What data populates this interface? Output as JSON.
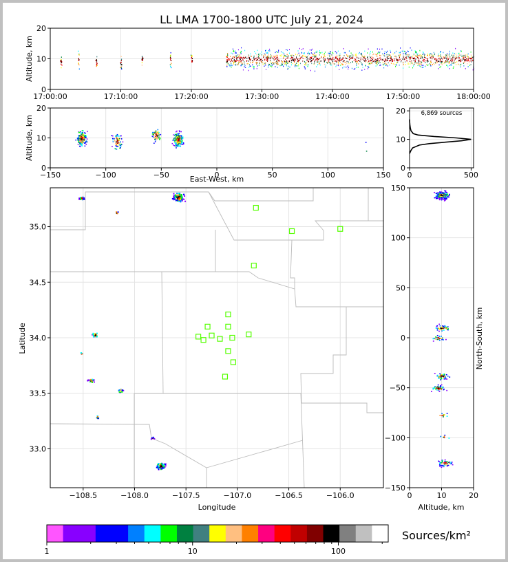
{
  "title": "LL LMA 1700-1800 UTC July 21, 2024",
  "chart_data": [
    {
      "id": "time-height",
      "type": "scatter",
      "ylabel": "Altitude, km",
      "ylim": [
        0,
        20
      ],
      "yticks": [
        "0",
        "10",
        "20"
      ],
      "xticks": [
        "17:00:00",
        "17:10:00",
        "17:20:00",
        "17:30:00",
        "17:40:00",
        "17:50:00",
        "18:00:00"
      ],
      "xlim_minutes": [
        0,
        60
      ],
      "clusters": [
        {
          "t": 1.5,
          "alt": 9,
          "spread": 2
        },
        {
          "t": 4,
          "alt": 10,
          "spread": 3
        },
        {
          "t": 6.5,
          "alt": 9,
          "spread": 2
        },
        {
          "t": 10,
          "alt": 9,
          "spread": 2
        },
        {
          "t": 13,
          "alt": 10,
          "spread": 2
        },
        {
          "t": 17,
          "alt": 10,
          "spread": 3
        },
        {
          "t": 20,
          "alt": 10,
          "spread": 2
        },
        {
          "t": 25,
          "alt": 10,
          "spread": 2
        }
      ],
      "dense_range_minutes": [
        25,
        60
      ]
    },
    {
      "id": "ew-height",
      "type": "scatter",
      "xlabel": "East-West, km",
      "ylabel": "Altitude, km",
      "xlim": [
        -150,
        150
      ],
      "ylim": [
        0,
        20
      ],
      "xticks": [
        "−150",
        "−100",
        "−50",
        "0",
        "50",
        "100",
        "150"
      ],
      "yticks": [
        "0",
        "10",
        "20"
      ],
      "clusters": [
        {
          "x": -122,
          "alt": 10,
          "n": 180
        },
        {
          "x": -90,
          "alt": 9,
          "n": 70
        },
        {
          "x": -55,
          "alt": 11,
          "n": 60
        },
        {
          "x": -35,
          "alt": 9.5,
          "n": 200
        },
        {
          "x": 136,
          "alt": 7,
          "n": 2
        }
      ]
    },
    {
      "id": "altitude-histogram",
      "type": "line",
      "annotation": "6,869 sources",
      "xticks": [
        "0",
        "500"
      ],
      "yticks": [
        "0",
        "10",
        "20"
      ],
      "xlim": [
        0,
        520
      ],
      "ylim": [
        0,
        21
      ],
      "profile": [
        {
          "alt": 5,
          "count": 0
        },
        {
          "alt": 6,
          "count": 10
        },
        {
          "alt": 7,
          "count": 25
        },
        {
          "alt": 8,
          "count": 80
        },
        {
          "alt": 8.5,
          "count": 160
        },
        {
          "alt": 9,
          "count": 290
        },
        {
          "alt": 9.5,
          "count": 420
        },
        {
          "alt": 10,
          "count": 500
        },
        {
          "alt": 10.5,
          "count": 380
        },
        {
          "alt": 11,
          "count": 200
        },
        {
          "alt": 11.5,
          "count": 70
        },
        {
          "alt": 12,
          "count": 30
        },
        {
          "alt": 13,
          "count": 12
        },
        {
          "alt": 14,
          "count": 6
        },
        {
          "alt": 15,
          "count": 3
        },
        {
          "alt": 16,
          "count": 1
        },
        {
          "alt": 17,
          "count": 0
        }
      ]
    },
    {
      "id": "plan-view",
      "type": "scatter",
      "xlabel": "Longitude",
      "ylabel": "Latitude",
      "xlim": [
        -108.82,
        -105.58
      ],
      "ylim": [
        32.65,
        35.35
      ],
      "xticks": [
        "−108.5",
        "−108.0",
        "−107.5",
        "−107.0",
        "−106.5",
        "−106.0"
      ],
      "yticks": [
        "33.0",
        "33.5",
        "34.0",
        "34.5",
        "35.0"
      ],
      "clusters": [
        {
          "lon": -108.52,
          "lat": 35.26,
          "n": 30
        },
        {
          "lon": -108.18,
          "lat": 35.13,
          "n": 4
        },
        {
          "lon": -107.58,
          "lat": 35.27,
          "n": 140
        },
        {
          "lon": -108.39,
          "lat": 34.03,
          "n": 40
        },
        {
          "lon": -108.52,
          "lat": 33.86,
          "n": 6
        },
        {
          "lon": -108.43,
          "lat": 33.62,
          "n": 30
        },
        {
          "lon": -108.14,
          "lat": 33.53,
          "n": 25
        },
        {
          "lon": -108.37,
          "lat": 33.29,
          "n": 10
        },
        {
          "lon": -107.83,
          "lat": 33.1,
          "n": 6
        },
        {
          "lon": -107.75,
          "lat": 32.85,
          "n": 80
        }
      ],
      "stations": [
        {
          "lon": -106.82,
          "lat": 35.17
        },
        {
          "lon": -106.47,
          "lat": 34.96
        },
        {
          "lon": -106.0,
          "lat": 34.98
        },
        {
          "lon": -106.84,
          "lat": 34.65
        },
        {
          "lon": -107.09,
          "lat": 34.21
        },
        {
          "lon": -107.29,
          "lat": 34.1
        },
        {
          "lon": -107.09,
          "lat": 34.1
        },
        {
          "lon": -107.38,
          "lat": 34.01
        },
        {
          "lon": -107.25,
          "lat": 34.02
        },
        {
          "lon": -107.33,
          "lat": 33.98
        },
        {
          "lon": -107.17,
          "lat": 33.99
        },
        {
          "lon": -107.05,
          "lat": 34.0
        },
        {
          "lon": -106.89,
          "lat": 34.03
        },
        {
          "lon": -107.09,
          "lat": 33.88
        },
        {
          "lon": -107.04,
          "lat": 33.78
        },
        {
          "lon": -107.12,
          "lat": 33.65
        }
      ]
    },
    {
      "id": "ns-height",
      "type": "scatter",
      "xlabel": "Altitude, km",
      "ylabel": "North-South, km",
      "xlim": [
        0,
        20
      ],
      "ylim": [
        -150,
        150
      ],
      "xticks": [
        "0",
        "10",
        "20"
      ],
      "yticks": [
        "−150",
        "−100",
        "−50",
        "0",
        "50",
        "100",
        "150"
      ],
      "clusters": [
        {
          "alt": 10,
          "y": 143,
          "n": 200
        },
        {
          "alt": 10,
          "y": 10,
          "n": 40
        },
        {
          "alt": 9,
          "y": 0,
          "n": 30
        },
        {
          "alt": 10,
          "y": -38,
          "n": 60
        },
        {
          "alt": 9,
          "y": -50,
          "n": 50
        },
        {
          "alt": 10,
          "y": -77,
          "n": 10
        },
        {
          "alt": 11,
          "y": -99,
          "n": 6
        },
        {
          "alt": 11,
          "y": -125,
          "n": 60
        }
      ]
    }
  ],
  "colorbar": {
    "label": "Sources/km²",
    "tick_labels": [
      "1",
      "10",
      "100"
    ],
    "colors": [
      "#ff55ff",
      "#8800ff",
      "#8800ff",
      "#0000ff",
      "#0000ff",
      "#0080ff",
      "#00ffff",
      "#00ff00",
      "#008040",
      "#408080",
      "#ffff00",
      "#ffbf80",
      "#ff8000",
      "#ff0080",
      "#ff0000",
      "#c00000",
      "#800000",
      "#000000",
      "#808080",
      "#c0c0c0",
      "#ffffff"
    ]
  }
}
